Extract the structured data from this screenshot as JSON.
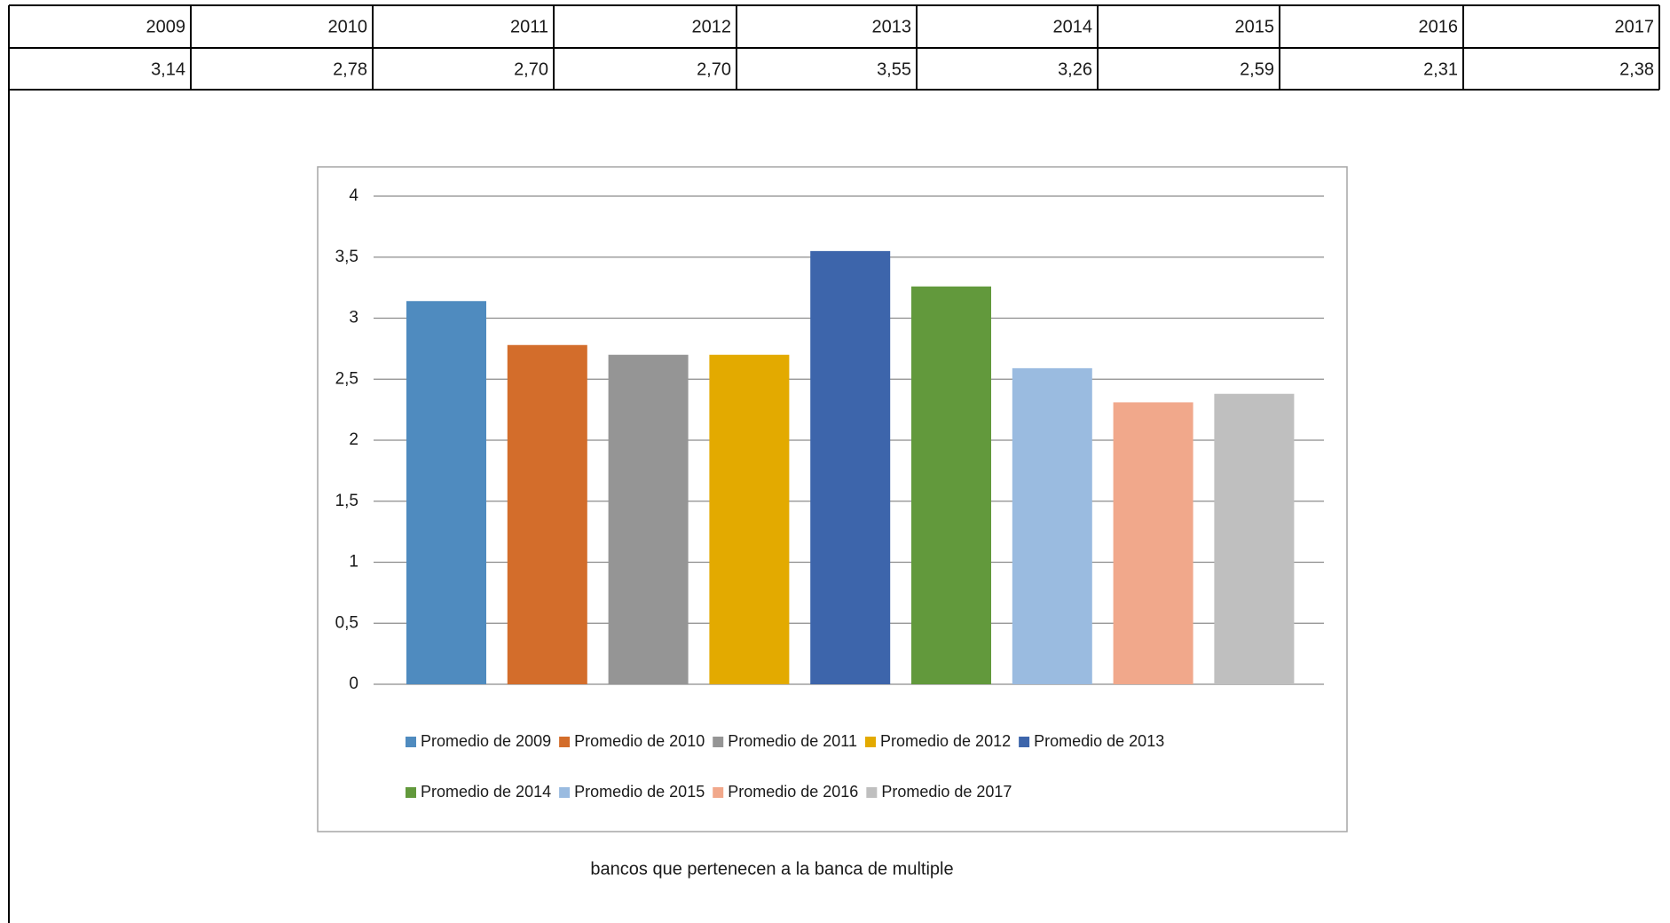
{
  "table": {
    "header": [
      "2009",
      "2010",
      "2011",
      "2012",
      "2013",
      "2014",
      "2015",
      "2016",
      "2017"
    ],
    "rows": [
      [
        "3,14",
        "2,78",
        "2,70",
        "2,70",
        "3,55",
        "3,26",
        "2,59",
        "2,31",
        "2,38"
      ]
    ]
  },
  "chart_data": {
    "type": "bar",
    "series": [
      {
        "name": "Promedio de 2009",
        "color": "#4f8bbf",
        "values": [
          3.14
        ]
      },
      {
        "name": "Promedio de 2010",
        "color": "#d36d2b",
        "values": [
          2.78
        ]
      },
      {
        "name": "Promedio de 2011",
        "color": "#959595",
        "values": [
          2.7
        ]
      },
      {
        "name": "Promedio de 2012",
        "color": "#e3aa00",
        "values": [
          2.7
        ]
      },
      {
        "name": "Promedio de 2013",
        "color": "#3d65ab",
        "values": [
          3.55
        ]
      },
      {
        "name": "Promedio de 2014",
        "color": "#62993c",
        "values": [
          3.26
        ]
      },
      {
        "name": "Promedio de 2015",
        "color": "#9abbe0",
        "values": [
          2.59
        ]
      },
      {
        "name": "Promedio de 2016",
        "color": "#f1a88b",
        "values": [
          2.31
        ]
      },
      {
        "name": "Promedio de 2017",
        "color": "#bfbfbf",
        "values": [
          2.38
        ]
      }
    ],
    "ylim": [
      0,
      4
    ],
    "yticks": [
      0,
      {
        "value": 0.5,
        "label": "0,5"
      },
      1,
      {
        "value": 1.5,
        "label": "1,5"
      },
      2,
      {
        "value": 2.5,
        "label": "2,5"
      },
      3,
      {
        "value": 3.5,
        "label": "3,5"
      },
      4
    ],
    "grid": true,
    "legend": "bottom"
  },
  "caption": "bancos que pertenecen a la banca de multiple"
}
